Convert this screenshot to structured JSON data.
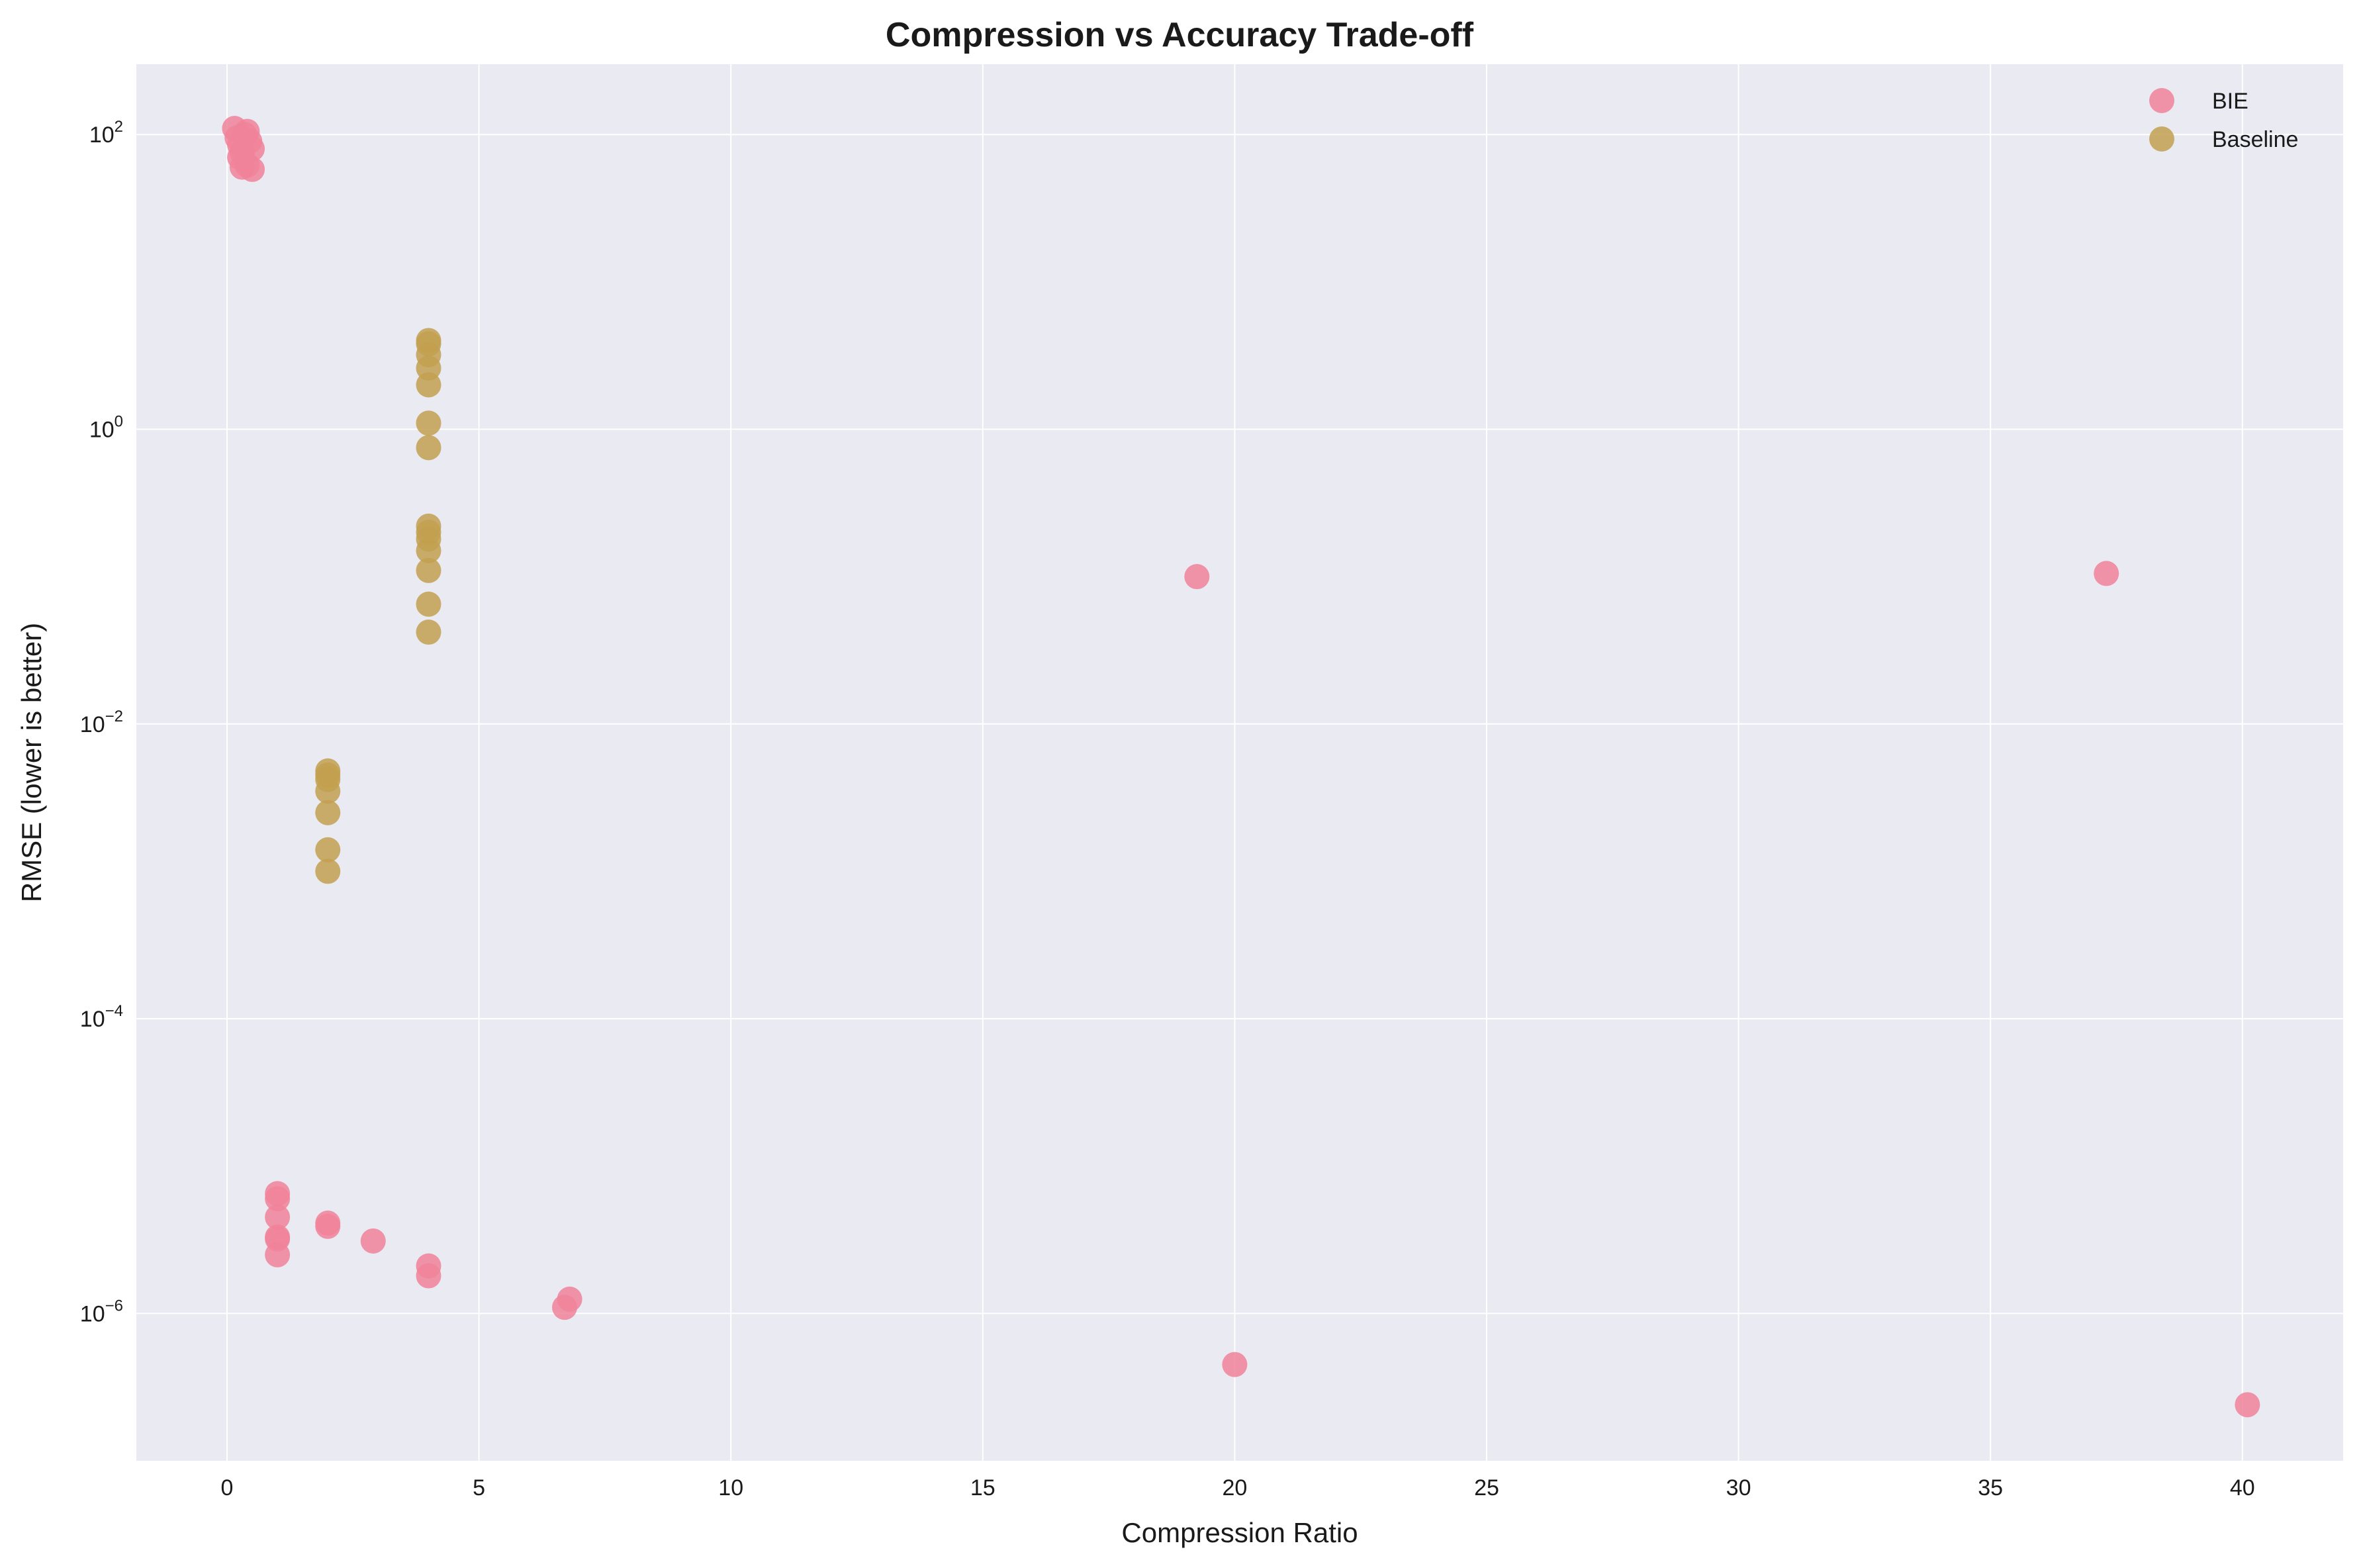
{
  "chart_data": {
    "type": "scatter",
    "title": "Compression vs Accuracy Trade-off",
    "xlabel": "Compression Ratio",
    "ylabel": "RMSE (lower is better)",
    "xlim": [
      -1.8,
      42
    ],
    "ylim": [
      1e-07,
      300
    ],
    "yscale": "log",
    "grid": true,
    "legend_position": "top-right",
    "x_ticks": [
      0,
      5,
      10,
      15,
      20,
      25,
      30,
      35,
      40
    ],
    "y_ticks": [
      {
        "value": 1e-06,
        "base": "10",
        "exp": "−6"
      },
      {
        "value": 0.0001,
        "base": "10",
        "exp": "−4"
      },
      {
        "value": 0.01,
        "base": "10",
        "exp": "−2"
      },
      {
        "value": 1,
        "base": "10",
        "exp": "0"
      },
      {
        "value": 100,
        "base": "10",
        "exp": "2"
      }
    ],
    "series": [
      {
        "name": "BIE",
        "color": "#f0829a",
        "points": [
          [
            0.15,
            110
          ],
          [
            0.2,
            95
          ],
          [
            0.25,
            85
          ],
          [
            0.3,
            75
          ],
          [
            0.35,
            100
          ],
          [
            0.4,
            105
          ],
          [
            0.45,
            90
          ],
          [
            0.5,
            80
          ],
          [
            0.3,
            60
          ],
          [
            0.4,
            62
          ],
          [
            0.5,
            58
          ],
          [
            0.25,
            70
          ],
          [
            1.0,
            6.5e-06
          ],
          [
            1.0,
            6e-06
          ],
          [
            1.0,
            4.5e-06
          ],
          [
            1.0,
            3.2e-06
          ],
          [
            1.0,
            3.3e-06
          ],
          [
            1.0,
            2.5e-06
          ],
          [
            2.0,
            4.1e-06
          ],
          [
            2.0,
            3.9e-06
          ],
          [
            2.9,
            3.1e-06
          ],
          [
            4.0,
            2.1e-06
          ],
          [
            4.0,
            1.8e-06
          ],
          [
            6.7,
            1.1e-06
          ],
          [
            6.8,
            1.25e-06
          ],
          [
            20.0,
            4.5e-07
          ],
          [
            40.1,
            2.4e-07
          ],
          [
            19.25,
            0.1
          ],
          [
            37.3,
            0.105
          ]
        ]
      },
      {
        "name": "Baseline",
        "color": "#c2a050",
        "points": [
          [
            4.0,
            4.0
          ],
          [
            4.0,
            3.8
          ],
          [
            4.0,
            3.2
          ],
          [
            4.0,
            2.6
          ],
          [
            4.0,
            2.0
          ],
          [
            4.0,
            1.1
          ],
          [
            4.0,
            0.75
          ],
          [
            4.0,
            0.22
          ],
          [
            4.0,
            0.2
          ],
          [
            4.0,
            0.18
          ],
          [
            4.0,
            0.15
          ],
          [
            4.0,
            0.11
          ],
          [
            4.0,
            0.065
          ],
          [
            4.0,
            0.042
          ],
          [
            2.0,
            0.0048
          ],
          [
            2.0,
            0.0045
          ],
          [
            2.0,
            0.0042
          ],
          [
            2.0,
            0.0035
          ],
          [
            2.0,
            0.0025
          ],
          [
            2.0,
            0.0014
          ],
          [
            2.0,
            0.001
          ]
        ]
      }
    ]
  },
  "colors": {
    "plot_background": "#eaeaf2",
    "grid": "#ffffff",
    "text": "#1a1a1a"
  }
}
